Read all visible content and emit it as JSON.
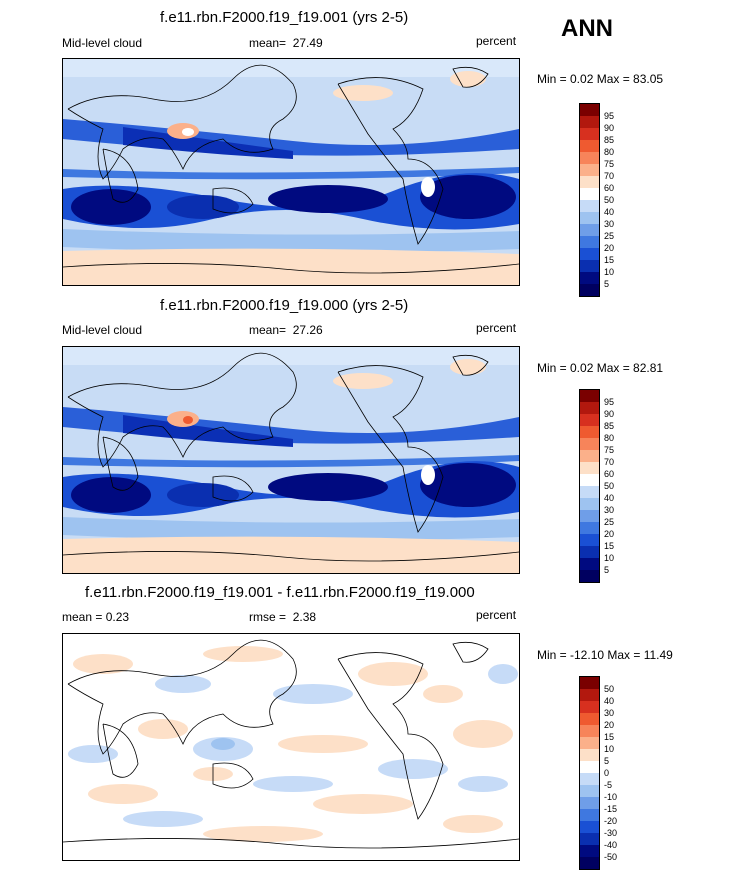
{
  "season": "ANN",
  "panels": [
    {
      "id": "p1",
      "title": "f.e11.rbn.F2000.f19_f19.001 (yrs 2-5)",
      "left_label": "Mid-level cloud",
      "mean_label": "mean=",
      "mean_value": "27.49",
      "units": "percent",
      "minmax": "Min =   0.02 Max =  83.05",
      "levels": [
        "95",
        "90",
        "85",
        "80",
        "75",
        "70",
        "60",
        "50",
        "40",
        "30",
        "25",
        "20",
        "15",
        "10",
        "5"
      ]
    },
    {
      "id": "p2",
      "title": "f.e11.rbn.F2000.f19_f19.000 (yrs 2-5)",
      "left_label": "Mid-level cloud",
      "mean_label": "mean=",
      "mean_value": "27.26",
      "units": "percent",
      "minmax": "Min =   0.02 Max =  82.81",
      "levels": [
        "95",
        "90",
        "85",
        "80",
        "75",
        "70",
        "60",
        "50",
        "40",
        "30",
        "25",
        "20",
        "15",
        "10",
        "5"
      ]
    },
    {
      "id": "p3",
      "title": "f.e11.rbn.F2000.f19_f19.001 - f.e11.rbn.F2000.f19_f19.000",
      "left_label": "mean =   0.23",
      "mean_label": "rmse =",
      "mean_value": "2.38",
      "units": "percent",
      "minmax": "Min = -12.10 Max =  11.49",
      "levels": [
        "50",
        "40",
        "30",
        "20",
        "15",
        "10",
        "5",
        "0",
        "-5",
        "-10",
        "-15",
        "-20",
        "-30",
        "-40",
        "-50"
      ]
    }
  ],
  "colors": {
    "abs_scale": [
      "#7a0000",
      "#b2180e",
      "#d7301f",
      "#ef5a30",
      "#f7845a",
      "#fbb08a",
      "#fde0c8",
      "#ffffff",
      "#c6dbf7",
      "#9ec3f0",
      "#6f9ee8",
      "#3f78e0",
      "#1a50d4",
      "#0a2fb0",
      "#000a80",
      "#000060"
    ],
    "diff_scale": [
      "#7a0000",
      "#b2180e",
      "#d7301f",
      "#ef5a30",
      "#f7845a",
      "#fbb08a",
      "#fde0c8",
      "#ffffff",
      "#c6dbf7",
      "#9ec3f0",
      "#6f9ee8",
      "#3f78e0",
      "#1a50d4",
      "#0a2fb0",
      "#000a80",
      "#000060"
    ]
  }
}
